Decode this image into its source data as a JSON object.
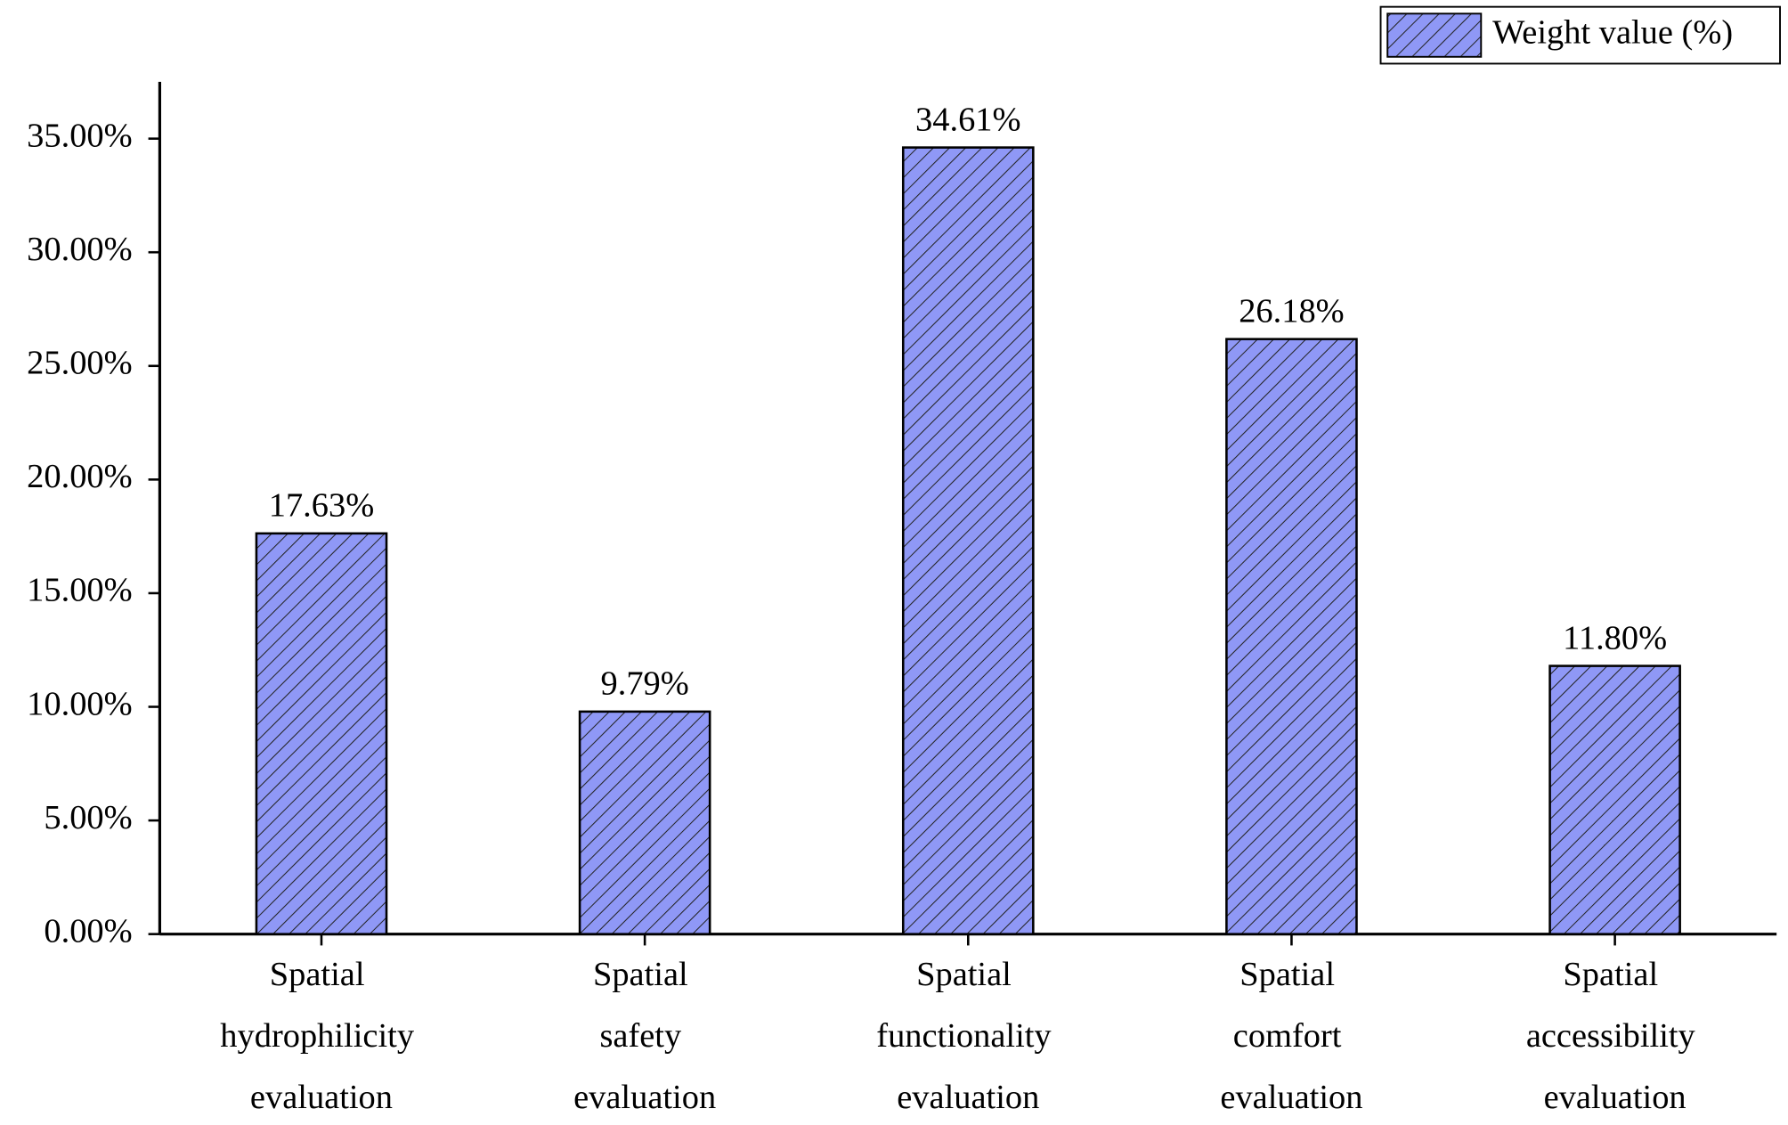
{
  "chart_data": {
    "type": "bar",
    "categories": [
      "Spatial hydrophilicity evaluation",
      "Spatial safety evaluation",
      "Spatial functionality evaluation",
      "Spatial comfort evaluation",
      "Spatial accessibility evaluation"
    ],
    "series": [
      {
        "name": "Weight value (%)",
        "color": "#8f98f6",
        "values": [
          17.63,
          9.79,
          34.61,
          26.18,
          11.8
        ],
        "value_labels": [
          "17.63%",
          "9.79%",
          "34.61%",
          "26.18%",
          "11.80%"
        ]
      }
    ],
    "ylim": [
      0,
      37.5
    ],
    "yticks": [
      {
        "value": 0,
        "label": "0.00%"
      },
      {
        "value": 5,
        "label": "5.00%"
      },
      {
        "value": 10,
        "label": "10.00%"
      },
      {
        "value": 15,
        "label": "15.00%"
      },
      {
        "value": 20,
        "label": "20.00%"
      },
      {
        "value": 25,
        "label": "25.00%"
      },
      {
        "value": 30,
        "label": "30.00%"
      },
      {
        "value": 35,
        "label": "35.00%"
      }
    ],
    "legend": "top-right",
    "grid": false
  }
}
